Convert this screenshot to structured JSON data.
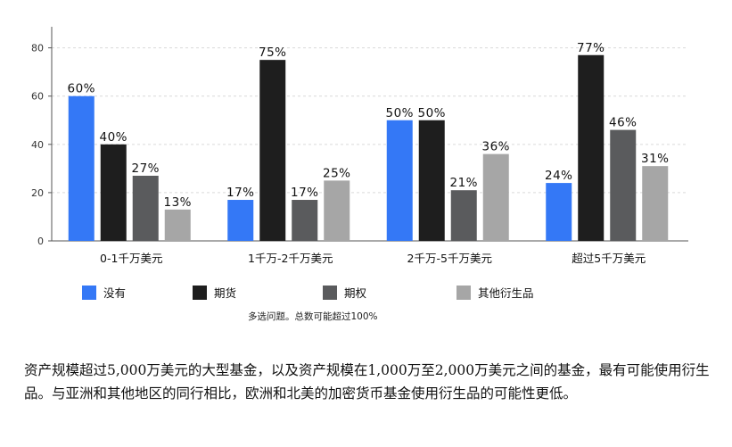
{
  "chart_data": {
    "type": "bar",
    "categories": [
      "0-1千万美元",
      "1千万-2千万美元",
      "2千万-5千万美元",
      "超过5千万美元"
    ],
    "series": [
      {
        "name": "没有",
        "color": "#3478f6",
        "values": [
          60,
          17,
          50,
          24
        ],
        "labels": [
          "60%",
          "17%",
          "50%",
          "24%"
        ]
      },
      {
        "name": "期货",
        "color": "#1e1e1e",
        "values": [
          40,
          75,
          50,
          77
        ],
        "labels": [
          "40%",
          "75%",
          "50%",
          "77%"
        ]
      },
      {
        "name": "期权",
        "color": "#5a5b5d",
        "values": [
          27,
          17,
          21,
          46
        ],
        "labels": [
          "27%",
          "17%",
          "21%",
          "46%"
        ]
      },
      {
        "name": "其他衍生品",
        "color": "#a6a6a6",
        "values": [
          13,
          25,
          36,
          31
        ],
        "labels": [
          "13%",
          "25%",
          "36%",
          "31%"
        ]
      }
    ],
    "yticks": [
      0,
      20,
      40,
      60,
      80
    ],
    "ylim": [
      0,
      88
    ],
    "grid": true,
    "legend_position": "bottom"
  },
  "note": "多选问题。总数可能超过100%",
  "caption": "资产规模超过5,000万美元的大型基金，以及资产规模在1,000万至2,000万美元之间的基金，最有可能使用衍生品。与亚洲和其他地区的同行相比，欧洲和北美的加密货币基金使用衍生品的可能性更低。"
}
